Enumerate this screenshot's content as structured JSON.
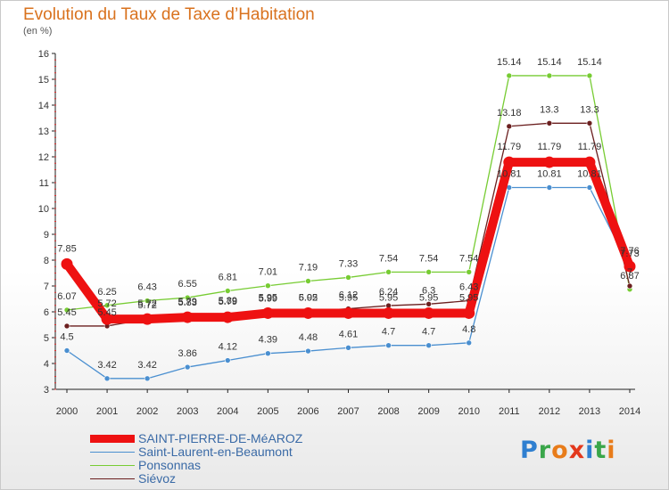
{
  "title": "Evolution du Taux de Taxe d’Habitation",
  "unit": "(en %)",
  "brand": "Proxiti",
  "chart_data": {
    "type": "line",
    "x": [
      "2000",
      "2001",
      "2002",
      "2003",
      "2004",
      "2005",
      "2006",
      "2007",
      "2008",
      "2009",
      "2010",
      "2011",
      "2012",
      "2013",
      "2014"
    ],
    "ylim": [
      3,
      16
    ],
    "yticks": [
      3,
      4,
      5,
      6,
      7,
      8,
      9,
      10,
      11,
      12,
      13,
      14,
      15,
      16
    ],
    "grid": false,
    "legend": "bottom-left",
    "series": [
      {
        "name": "SAINT-PIERRE-DE-MéAROZ",
        "color": "#ee1111",
        "values": [
          7.85,
          5.72,
          5.72,
          5.79,
          5.79,
          5.95,
          5.95,
          5.95,
          5.95,
          5.95,
          5.95,
          11.79,
          11.79,
          11.79,
          7.76
        ],
        "labels": [
          "7.85",
          "5.72",
          "5.72",
          "5.79",
          "5.79",
          "5.95",
          "5.95",
          "5.95",
          "5.95",
          "5.95",
          "5.95",
          "11.79",
          "11.79",
          "11.79",
          "7.76"
        ]
      },
      {
        "name": "Saint-Laurent-en-Beaumont",
        "color": "#4a8fd0",
        "values": [
          4.5,
          3.42,
          3.42,
          3.86,
          4.12,
          4.39,
          4.48,
          4.61,
          4.7,
          4.7,
          4.8,
          10.81,
          10.81,
          10.81,
          7.73
        ],
        "labels": [
          "4.5",
          "3.42",
          "3.42",
          "3.86",
          "4.12",
          "4.39",
          "4.48",
          "4.61",
          "4.7",
          "4.7",
          "4.8",
          "10.81",
          "10.81",
          "10.81",
          "7.73"
        ]
      },
      {
        "name": "Ponsonnas",
        "color": "#77cc33",
        "values": [
          6.07,
          6.25,
          6.43,
          6.55,
          6.81,
          7.01,
          7.19,
          7.33,
          7.54,
          7.54,
          7.54,
          15.14,
          15.14,
          15.14,
          6.87
        ],
        "labels": [
          "6.07",
          "6.25",
          "6.43",
          "6.55",
          "6.81",
          "7.01",
          "7.19",
          "7.33",
          "7.54",
          "7.54",
          "7.54",
          "15.14",
          "15.14",
          "15.14",
          "6.87"
        ]
      },
      {
        "name": "Siévoz",
        "color": "#6b1f1f",
        "values": [
          5.45,
          5.45,
          5.72,
          5.83,
          5.89,
          5.99,
          6.02,
          6.12,
          6.24,
          6.3,
          6.43,
          13.18,
          13.3,
          13.3,
          7.0
        ],
        "labels": [
          "5.45",
          "5.45",
          "5.72",
          "5.83",
          "5.89",
          "5.99",
          "6.02",
          "6.12",
          "6.24",
          "6.3",
          "6.43",
          "13.18",
          "13.3",
          "13.3",
          "7"
        ]
      }
    ]
  }
}
